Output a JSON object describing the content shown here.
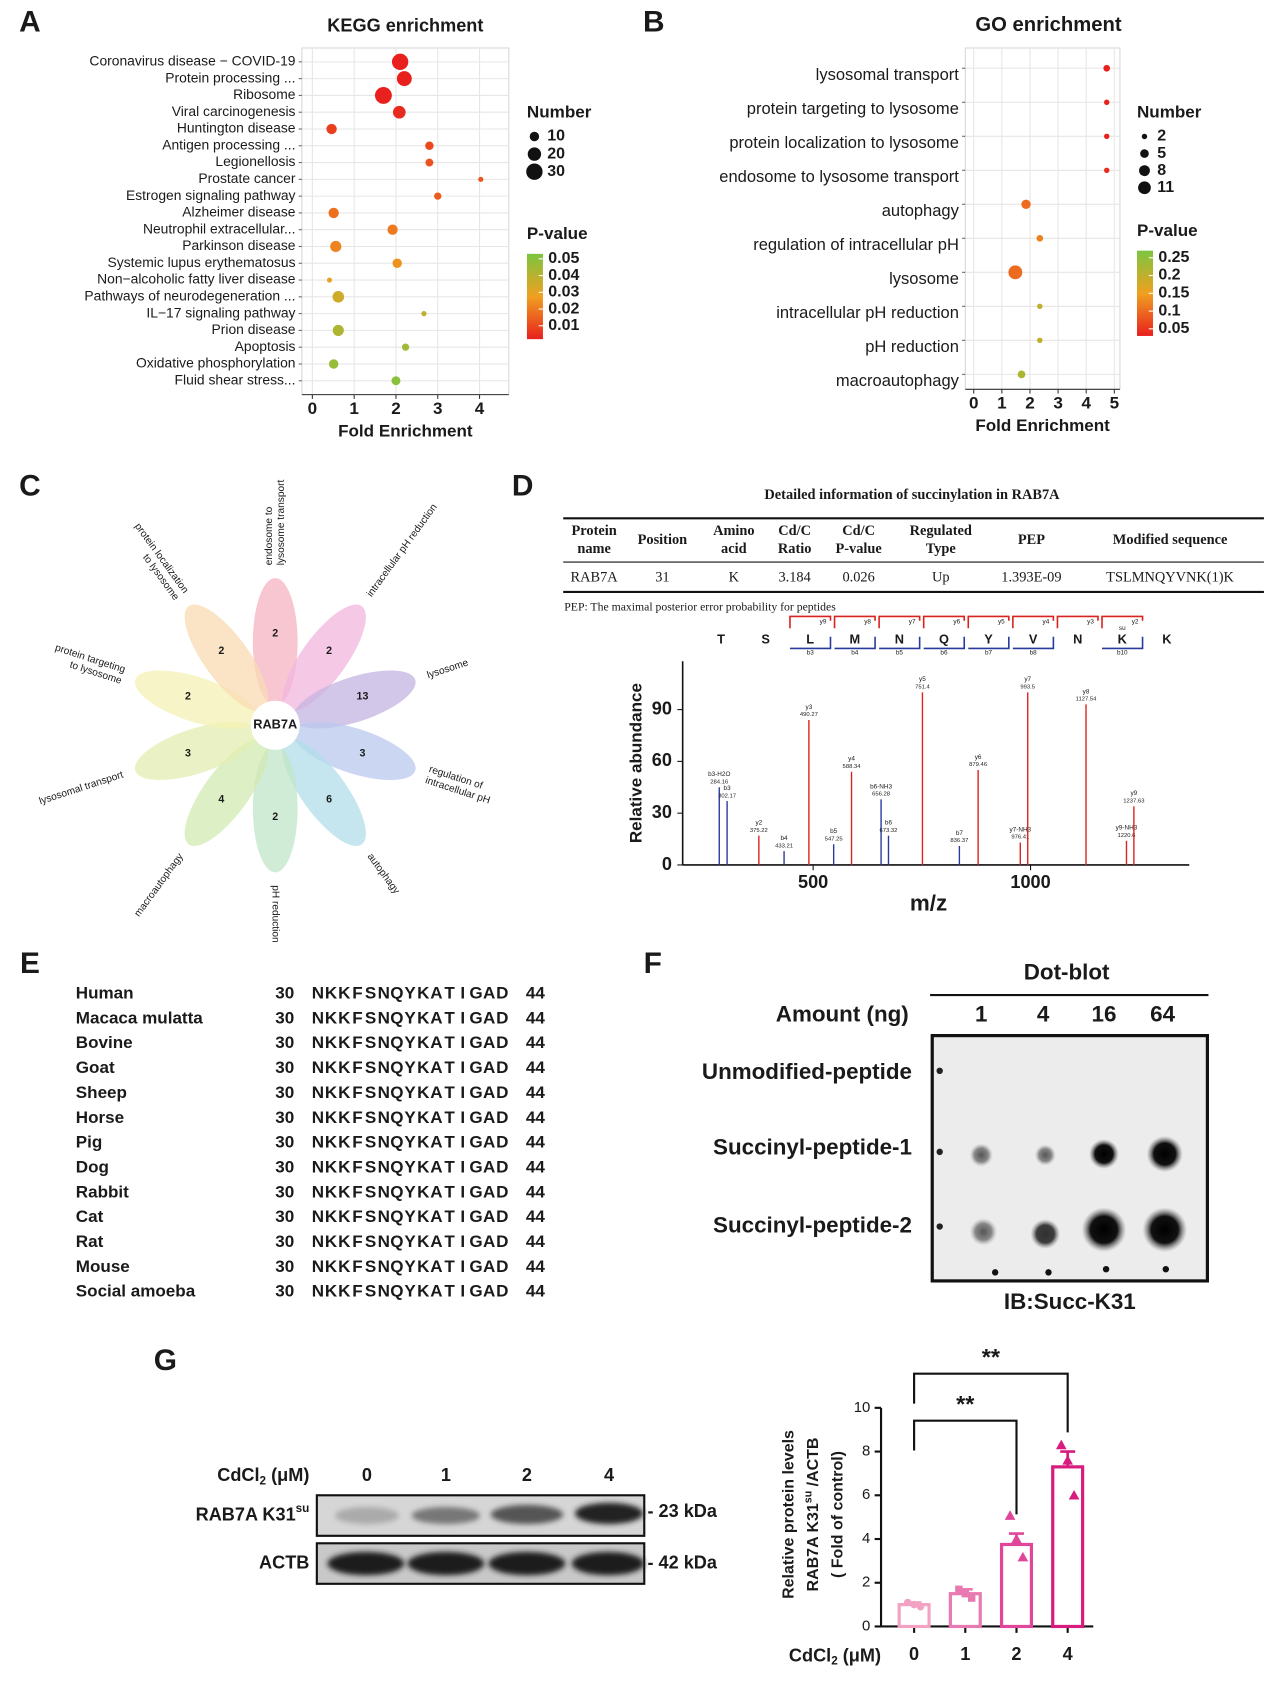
{
  "panels": [
    "A",
    "B",
    "C",
    "D",
    "E",
    "F",
    "G"
  ],
  "chart_data": [
    {
      "type": "dot",
      "title": "KEGG enrichment",
      "xlabel": "Fold Enrichment",
      "categories": [
        "Coronavirus disease − COVID-19",
        "Protein processing ...",
        "Ribosome",
        "Viral carcinogenesis",
        "Huntington disease",
        "Antigen processing ...",
        "Legionellosis",
        "Prostate cancer",
        "Estrogen signaling pathway",
        "Alzheimer disease",
        "Neutrophil extracellular...",
        "Parkinson disease",
        "Systemic lupus erythematosus",
        "Non−alcoholic fatty liver disease",
        "Pathways of neurodegeneration ...",
        "IL−17 signaling pathway",
        "Prion disease",
        "Apoptosis",
        "Oxidative phosphorylation",
        "Fluid shear stress..."
      ],
      "values": [
        2.1,
        2.2,
        1.7,
        2.08,
        0.46,
        2.8,
        2.8,
        4.03,
        3.0,
        0.51,
        1.92,
        0.56,
        2.03,
        0.41,
        0.62,
        2.67,
        0.62,
        2.23,
        0.51,
        2.0
      ],
      "sizes": [
        30,
        25,
        32,
        18,
        12,
        8,
        7,
        3,
        6,
        12,
        12,
        14,
        10,
        3,
        15,
        3,
        14,
        6,
        10,
        9
      ],
      "pvalues": [
        0.001,
        0.002,
        0.001,
        0.004,
        0.008,
        0.01,
        0.012,
        0.013,
        0.014,
        0.018,
        0.02,
        0.022,
        0.025,
        0.03,
        0.035,
        0.038,
        0.042,
        0.045,
        0.047,
        0.05
      ],
      "xlim": [
        -0.25,
        4.7
      ],
      "xticks": [
        0,
        1,
        2,
        3,
        4
      ],
      "grid": true,
      "highlight_index": 9,
      "highlight_color": "#e8262b",
      "size_legend": {
        "title": "Number",
        "values": [
          10,
          20,
          30
        ]
      },
      "color_legend": {
        "title": "P-value",
        "ticks": [
          0.05,
          0.04,
          0.03,
          0.02,
          0.01
        ],
        "clim": [
          0.002,
          0.053
        ],
        "colors": [
          "#e8201e",
          "#f0a020",
          "#7cc540"
        ]
      }
    },
    {
      "type": "dot",
      "title": "GO enrichment",
      "xlabel": "Fold Enrichment",
      "categories": [
        "lysosomal transport",
        "protein targeting to lysosome",
        "protein localization to lysosome",
        "endosome to lysosome transport",
        "autophagy",
        "regulation of intracellular pH",
        "lysosome",
        "intracellular pH reduction",
        "pH reduction",
        "macroautophagy"
      ],
      "values": [
        4.73,
        4.73,
        4.73,
        4.73,
        1.86,
        2.35,
        1.48,
        2.35,
        2.35,
        1.7
      ],
      "sizes": [
        3,
        2,
        2,
        2,
        6,
        3,
        13,
        2,
        2,
        4
      ],
      "pvalues": [
        0.01,
        0.02,
        0.03,
        0.04,
        0.1,
        0.12,
        0.1,
        0.2,
        0.2,
        0.22
      ],
      "xlim": [
        -0.3,
        5.2
      ],
      "xticks": [
        0,
        1,
        2,
        3,
        4,
        5
      ],
      "grid": true,
      "size_legend": {
        "title": "Number",
        "values": [
          2,
          5,
          8,
          11
        ]
      },
      "color_legend": {
        "title": "P-value",
        "ticks": [
          0.25,
          0.2,
          0.15,
          0.1,
          0.05
        ],
        "clim": [
          0.03,
          0.27
        ],
        "colors": [
          "#e8201e",
          "#f0a020",
          "#7cc540"
        ]
      }
    },
    {
      "type": "spectrum",
      "xlabel": "m/z",
      "ylabel": "Relative abundance",
      "ions": [
        "b3-H2O",
        "b3",
        "y2",
        "b4",
        "y3",
        "b5",
        "y4",
        "b6-NH3",
        "b6",
        "y5",
        "b7",
        "y6",
        "y7-NH3",
        "y7",
        "y8",
        "y9-NH3",
        "y9"
      ],
      "x": [
        284.16,
        302.17,
        375.22,
        433.21,
        490.27,
        547.25,
        588.34,
        656.28,
        673.32,
        751.4,
        836.37,
        879.46,
        976.41,
        993.5,
        1127.54,
        1220.6,
        1237.63
      ],
      "values": [
        45,
        37,
        17,
        8,
        84,
        12,
        54,
        38,
        17,
        100,
        11,
        55,
        13,
        100,
        93,
        14,
        34
      ],
      "ion_colors": {
        "b": "#2a3a9c",
        "y": "#d9231f"
      },
      "xlim": [
        200,
        1365
      ],
      "ylim": [
        0,
        118
      ],
      "xticks": [
        500,
        1000
      ],
      "yticks": [
        0,
        30,
        60,
        90
      ],
      "sequence": [
        "T",
        "S",
        "L",
        "M",
        "N",
        "Q",
        "Y",
        "V",
        "N",
        "K",
        "K"
      ],
      "y_ions": {
        "labels": [
          "y9",
          "y8",
          "y7",
          "y6",
          "y5",
          "y4",
          "y3",
          "y2"
        ],
        "positions": [
          2,
          3,
          4,
          5,
          6,
          7,
          8,
          9
        ]
      },
      "b_ions": {
        "labels": [
          "b3",
          "b4",
          "b5",
          "b6",
          "b7",
          "b8",
          "b10"
        ],
        "positions": [
          2,
          3,
          4,
          5,
          6,
          7,
          9
        ]
      },
      "modification": {
        "label": "su",
        "position": 9
      }
    },
    {
      "type": "bar",
      "categories": [
        0,
        1,
        2,
        4
      ],
      "values": [
        1.0,
        1.5,
        3.75,
        7.3
      ],
      "errors": [
        0.1,
        0.2,
        0.5,
        0.7
      ],
      "points": [
        [
          1.1,
          1.0,
          0.9
        ],
        [
          1.7,
          1.5,
          1.3
        ],
        [
          5.07,
          4.0,
          3.17
        ],
        [
          8.3,
          7.6,
          6.0
        ]
      ],
      "colors": [
        "#f2a3c4",
        "#e97ab1",
        "#e0469a",
        "#d81b7f"
      ],
      "markers": [
        "circle",
        "square",
        "triangle",
        "triangle"
      ],
      "ylim": [
        0,
        10
      ],
      "yticks": [
        0,
        2,
        4,
        6,
        8,
        10
      ],
      "xlabel": [
        "CdCl",
        "2",
        " (μM)"
      ],
      "ylabel": [
        [
          "Relative protein levels"
        ],
        [
          "RAB7A K31",
          "su",
          " /ACTB"
        ],
        [
          "( Fold of control)"
        ]
      ],
      "significance": [
        {
          "from": 0,
          "to": 2,
          "label": "**"
        },
        {
          "from": 0,
          "to": 3,
          "label": "**"
        }
      ]
    }
  ],
  "flower": {
    "center": "RAB7A",
    "petals": [
      {
        "label": [
          "endosome to",
          "lysosome transport"
        ],
        "count": "2",
        "color": "#f5b3c2"
      },
      {
        "label": [
          "intracellular pH reduction"
        ],
        "count": "2",
        "color": "#f2b5de"
      },
      {
        "label": [
          "lysosome"
        ],
        "count": "13",
        "color": "#c4b4e2"
      },
      {
        "label": [
          "regulation of",
          "intracellular pH"
        ],
        "count": "3",
        "color": "#b9c9ee"
      },
      {
        "label": [
          "autophagy"
        ],
        "count": "6",
        "color": "#b2dde8"
      },
      {
        "label": [
          "pH reduction"
        ],
        "count": "2",
        "color": "#c2e6c8"
      },
      {
        "label": [
          "macroautophagy"
        ],
        "count": "4",
        "color": "#d2e9b2"
      },
      {
        "label": [
          "lysosomal transport"
        ],
        "count": "3",
        "color": "#e3edb2"
      },
      {
        "label": [
          "protein targeting",
          "to lysosome"
        ],
        "count": "2",
        "color": "#f4f1b4"
      },
      {
        "label": [
          "protein localization",
          "to lysosome"
        ],
        "count": "2",
        "color": "#f9d9b3"
      }
    ]
  },
  "table": {
    "title": "Detailed information of succinylation in RAB7A",
    "headers": [
      [
        "Protein",
        "name"
      ],
      [
        "Position"
      ],
      [
        "Amino",
        "acid"
      ],
      [
        "Cd/C",
        "Ratio"
      ],
      [
        "Cd/C",
        "P-value"
      ],
      [
        "Regulated",
        "Type"
      ],
      [
        "PEP"
      ],
      [
        "Modified sequence"
      ]
    ],
    "rows": [
      [
        "RAB7A",
        "31",
        "K",
        "3.184",
        "0.026",
        "Up",
        "1.393E-09",
        "TSLMNQYVNK(1)K"
      ]
    ],
    "note": "PEP: The maximal posterior error probability for peptides"
  },
  "alignment": {
    "species": [
      "Human",
      "Macaca mulatta",
      "Bovine",
      "Goat",
      "Sheep",
      "Horse",
      "Pig",
      "Dog",
      "Rabbit",
      "Cat",
      "Rat",
      "Mouse",
      "Social amoeba"
    ],
    "start": "30",
    "end": "44",
    "residues": [
      "N",
      "K",
      "K",
      "F",
      "S",
      "N",
      "Q",
      "Y",
      "K",
      "A",
      "T",
      "I",
      "G",
      "A",
      "D"
    ],
    "highlight_index": 1,
    "highlight_color": "#e8201e"
  },
  "dot_blot": {
    "title": "Dot-blot",
    "amount_label": "Amount (ng)",
    "amounts": [
      "1",
      "4",
      "16",
      "64"
    ],
    "rows": [
      "Unmodified-peptide",
      "Succinyl-peptide-1",
      "Succinyl-peptide-2"
    ],
    "antibody": "IB:Succ-K31"
  },
  "western_blot": {
    "treatment_label": [
      "CdCl",
      "2",
      " (μM)"
    ],
    "lanes": [
      "0",
      "1",
      "2",
      "4"
    ],
    "rows": [
      {
        "label": [
          "RAB7A K31",
          "su"
        ],
        "size": "- 23 kDa"
      },
      {
        "label": [
          "ACTB"
        ],
        "size": "- 42 kDa"
      }
    ]
  }
}
